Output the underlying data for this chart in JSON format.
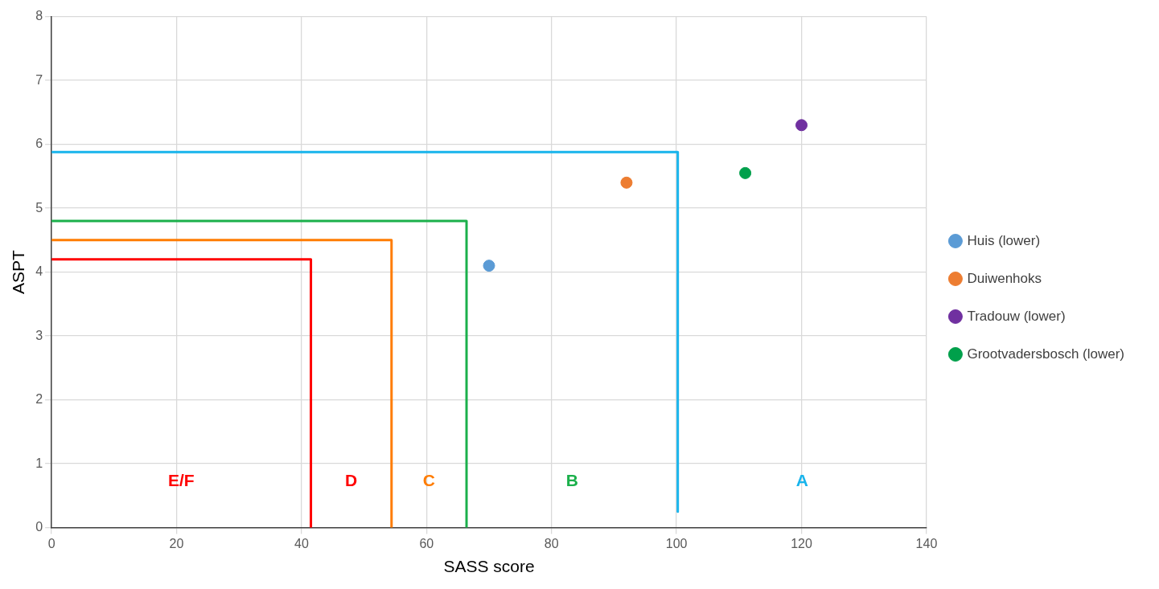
{
  "chart_data": {
    "type": "scatter",
    "xlabel": "SASS score",
    "ylabel": "ASPT",
    "xlim": [
      0,
      140
    ],
    "xticks": [
      0,
      20,
      40,
      60,
      80,
      100,
      120,
      140
    ],
    "ylim": [
      0,
      8
    ],
    "yticks": [
      0,
      1,
      2,
      3,
      4,
      5,
      6,
      7,
      8
    ],
    "grid": true,
    "legend": "right",
    "marker": "circle",
    "series": [
      {
        "name": "Huis (lower)",
        "color": "#5b9bd5",
        "x": [
          70
        ],
        "values": [
          4.1
        ]
      },
      {
        "name": "Duiwenhoks",
        "color": "#ed7d31",
        "x": [
          92
        ],
        "values": [
          5.4
        ]
      },
      {
        "name": "Tradouw (lower)",
        "color": "#7030a0",
        "x": [
          120
        ],
        "values": [
          6.3
        ]
      },
      {
        "name": "Grootvadersbosch (lower)",
        "color": "#00a04b",
        "x": [
          111
        ],
        "values": [
          5.55
        ]
      },
      {
        "type": "line",
        "marker": "none",
        "color": "#ff0000",
        "x": [
          0,
          41.5,
          41.5
        ],
        "values": [
          4.2,
          4.2,
          0
        ]
      },
      {
        "type": "line",
        "marker": "none",
        "color": "#ff7c00",
        "x": [
          0,
          54.4,
          54.4
        ],
        "values": [
          4.5,
          4.5,
          0
        ]
      },
      {
        "type": "line",
        "marker": "none",
        "color": "#1bb04b",
        "x": [
          0,
          66.4,
          66.4
        ],
        "values": [
          4.8,
          4.8,
          0
        ]
      },
      {
        "type": "line",
        "marker": "none",
        "color": "#18b4ec",
        "x": [
          0,
          100.2,
          100.2
        ],
        "values": [
          5.88,
          5.88,
          0.25
        ]
      }
    ],
    "annotations": [
      "E/F",
      "D",
      "C",
      "B",
      "A"
    ]
  }
}
